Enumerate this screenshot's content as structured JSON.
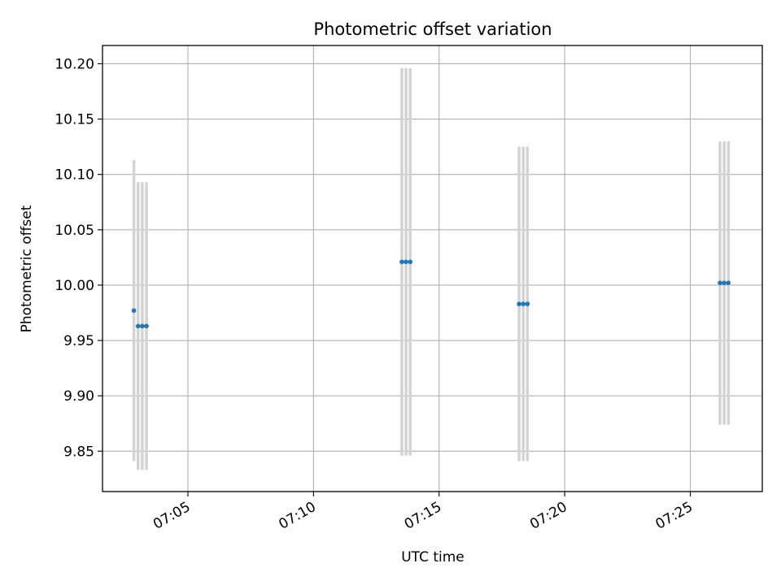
{
  "chart_data": {
    "type": "scatter",
    "title": "Photometric offset variation",
    "xlabel": "UTC time",
    "ylabel": "Photometric offset",
    "xlim": [
      "07:01:36",
      "07:27:52"
    ],
    "ylim": [
      9.8135,
      10.2165
    ],
    "x_ticks": [
      "07:05",
      "07:10",
      "07:15",
      "07:20",
      "07:25"
    ],
    "y_ticks": [
      "9.85",
      "9.90",
      "9.95",
      "10.00",
      "10.05",
      "10.10",
      "10.15",
      "10.20"
    ],
    "grid": true,
    "colors": {
      "marker": "#1f77b4",
      "errorbar": "#d3d3d3",
      "grid": "#b0b0b0"
    },
    "points": [
      {
        "x": "07:02:51",
        "y": 9.977,
        "yerr": 0.136
      },
      {
        "x": "07:03:01",
        "y": 9.963,
        "yerr": 0.13
      },
      {
        "x": "07:03:11",
        "y": 9.963,
        "yerr": 0.13
      },
      {
        "x": "07:03:21",
        "y": 9.963,
        "yerr": 0.13
      },
      {
        "x": "07:13:31",
        "y": 10.021,
        "yerr": 0.175
      },
      {
        "x": "07:13:41",
        "y": 10.021,
        "yerr": 0.175
      },
      {
        "x": "07:13:51",
        "y": 10.021,
        "yerr": 0.175
      },
      {
        "x": "07:18:11",
        "y": 9.983,
        "yerr": 0.142
      },
      {
        "x": "07:18:21",
        "y": 9.983,
        "yerr": 0.142
      },
      {
        "x": "07:18:31",
        "y": 9.983,
        "yerr": 0.142
      },
      {
        "x": "07:26:11",
        "y": 10.002,
        "yerr": 0.128
      },
      {
        "x": "07:26:21",
        "y": 10.002,
        "yerr": 0.128
      },
      {
        "x": "07:26:31",
        "y": 10.002,
        "yerr": 0.128
      }
    ]
  }
}
